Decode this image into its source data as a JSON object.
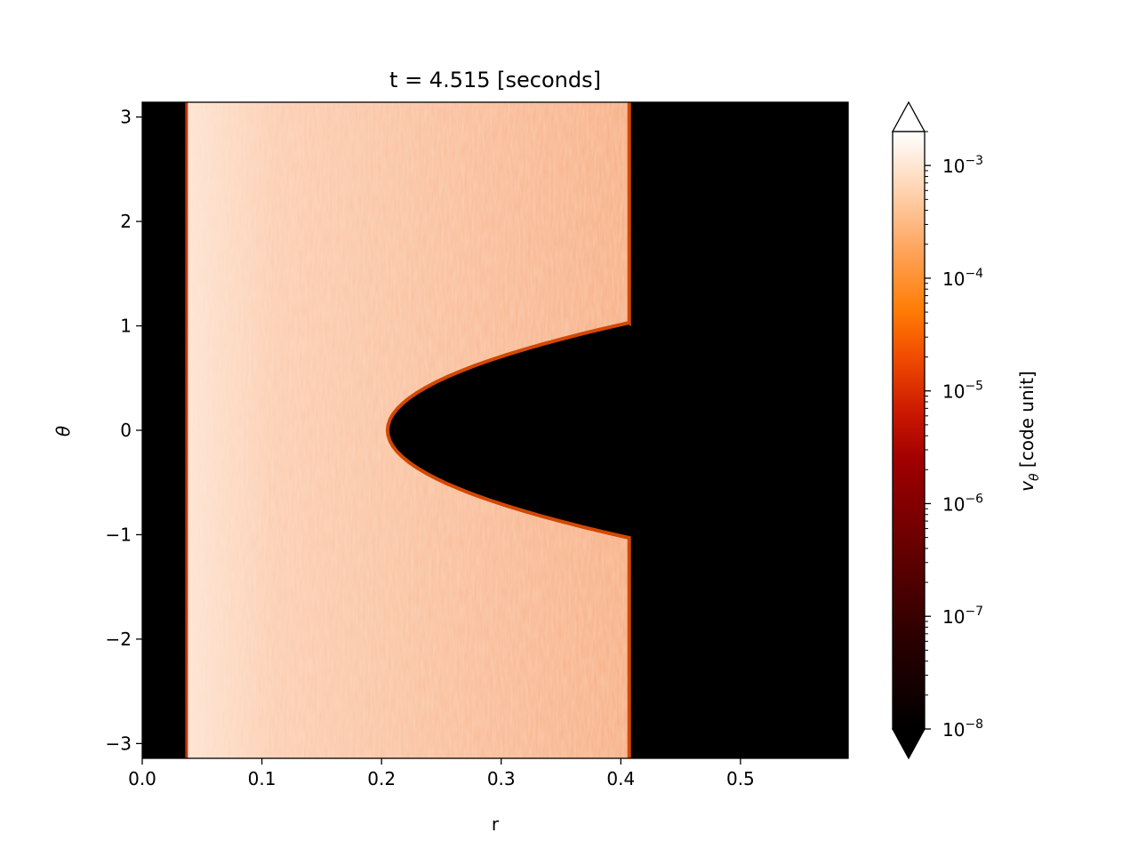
{
  "chart_data": {
    "type": "heatmap",
    "title": "t = 4.515 [seconds]",
    "xlabel": "r",
    "ylabel": "θ",
    "xlim": [
      0.0,
      0.59
    ],
    "ylim": [
      -3.1416,
      3.1416
    ],
    "x_ticks": [
      0.0,
      0.1,
      0.2,
      0.3,
      0.4,
      0.5
    ],
    "x_tick_labels": [
      "0.0",
      "0.1",
      "0.2",
      "0.3",
      "0.4",
      "0.5"
    ],
    "y_ticks": [
      -3,
      -2,
      -1,
      0,
      1,
      2,
      3
    ],
    "y_tick_labels": [
      "−3",
      "−2",
      "−1",
      "0",
      "1",
      "2",
      "3"
    ],
    "colorbar": {
      "label_symbol": "v",
      "label_subscript": "θ",
      "label_text": " [code unit]",
      "scale": "log",
      "range": [
        1e-08,
        0.002
      ],
      "extend": "both",
      "colormap": "gist_heat",
      "tick_values": [
        1e-08,
        1e-07,
        1e-06,
        1e-05,
        0.0001,
        0.001
      ],
      "tick_bases": [
        "10",
        "10",
        "10",
        "10",
        "10",
        "10"
      ],
      "tick_exponents": [
        "−8",
        "−7",
        "−6",
        "−5",
        "−4",
        "−3"
      ]
    },
    "regions": {
      "inner_edge_r": 0.037,
      "outer_edge_r": 0.407,
      "cavity_apex_r": 0.205,
      "cavity_theta_halfwidth": 1.03,
      "cavity_end_r": 0.41,
      "active_value": 0.0003,
      "background_value": 1e-08
    },
    "colors": {
      "background": "#000000",
      "active": "#f9b58f"
    }
  }
}
